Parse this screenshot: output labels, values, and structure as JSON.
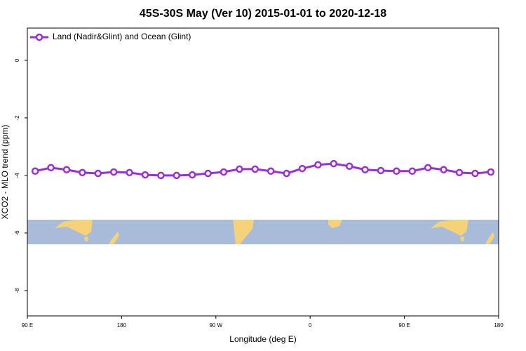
{
  "chart_data": {
    "type": "line",
    "title": "45S-30S May (Ver 10)   2015-01-01 to 2020-12-18",
    "x_label": "Longitude (deg E)",
    "y_label": "XCO2 - MLO trend (ppm)",
    "x": [
      97.5,
      112.5,
      127.5,
      142.5,
      157.5,
      172.5,
      187.5,
      202.5,
      217.5,
      232.5,
      247.5,
      262.5,
      277.5,
      292.5,
      307.5,
      322.5,
      337.5,
      352.5,
      367.5,
      382.5,
      397.5,
      412.5,
      427.5,
      442.5,
      457.5,
      472.5,
      487.5,
      502.5,
      517.5,
      532.5
    ],
    "series": [
      {
        "name": "Land (Nadir&Glint) and Ocean (Glint)",
        "color": "#9b2fd6",
        "values": [
          -3.85,
          -3.73,
          -3.8,
          -3.9,
          -3.93,
          -3.88,
          -3.9,
          -3.98,
          -4.0,
          -4.0,
          -3.98,
          -3.93,
          -3.88,
          -3.78,
          -3.78,
          -3.85,
          -3.93,
          -3.76,
          -3.63,
          -3.59,
          -3.68,
          -3.8,
          -3.83,
          -3.85,
          -3.85,
          -3.73,
          -3.8,
          -3.9,
          -3.93,
          -3.88
        ]
      }
    ],
    "xlim": [
      90,
      540
    ],
    "xticks": [
      {
        "value": 90,
        "label": "90 E"
      },
      180,
      {
        "value": 270,
        "label": "90 W"
      },
      {
        "value": 360,
        "label": "0"
      },
      {
        "value": 450,
        "label": "90 E"
      },
      {
        "value": 540,
        "label": "180"
      }
    ],
    "ylim": [
      -8.88,
      1.12
    ],
    "yticks": [
      0,
      -2,
      -4,
      -6,
      -8
    ],
    "legend": "top-left",
    "grid": false
  }
}
